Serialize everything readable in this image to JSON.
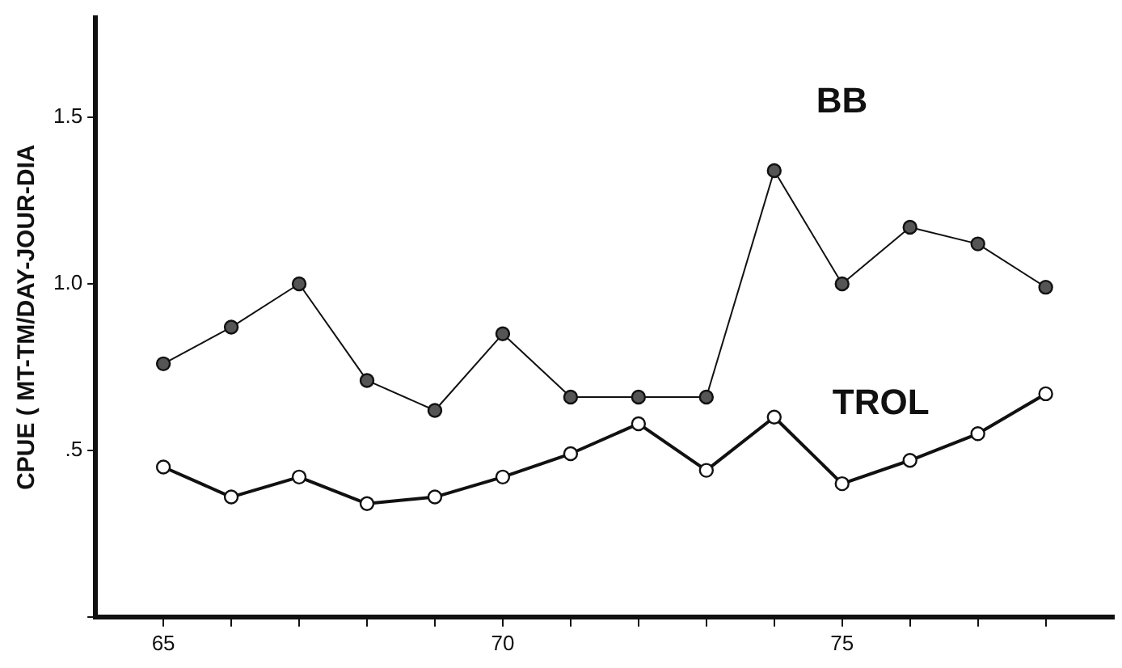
{
  "chart_data": {
    "type": "line",
    "ylabel": "CPUE ( MT-TM/DAY-JOUR-DIA",
    "x": [
      65,
      66,
      67,
      68,
      69,
      70,
      71,
      72,
      73,
      74,
      75,
      76,
      77,
      78
    ],
    "series": [
      {
        "name": "BB",
        "color": "#555555",
        "values": [
          0.76,
          0.87,
          1.0,
          0.71,
          0.62,
          0.85,
          0.66,
          0.66,
          0.66,
          1.34,
          1.0,
          1.17,
          1.12,
          0.99
        ]
      },
      {
        "name": "TROL",
        "color": "#ffffff",
        "values": [
          0.45,
          0.36,
          0.42,
          0.34,
          0.36,
          0.42,
          0.49,
          0.58,
          0.44,
          0.6,
          0.4,
          0.47,
          0.55,
          0.67
        ]
      }
    ],
    "xlim": [
      64,
      79
    ],
    "xticks": [
      65,
      {
        "value": 66,
        "label": null
      },
      {
        "value": 67,
        "label": null
      },
      {
        "value": 68,
        "label": null
      },
      {
        "value": 69,
        "label": null
      },
      70,
      {
        "value": 71,
        "label": null
      },
      {
        "value": 72,
        "label": null
      },
      {
        "value": 73,
        "label": null
      },
      {
        "value": 74,
        "label": null
      },
      75,
      {
        "value": 76,
        "label": null
      },
      {
        "value": 77,
        "label": null
      },
      {
        "value": 78,
        "label": null
      }
    ],
    "ylim": [
      0,
      1.8
    ],
    "yticks": [
      {
        "value": 0,
        "label": null
      },
      {
        "value": 0.5,
        "label": ".5"
      },
      {
        "value": 1.0,
        "label": "1.0"
      },
      {
        "value": 1.5,
        "label": "1.5"
      }
    ],
    "grid": false,
    "legend": false,
    "marker": "circle",
    "line_style": "solid"
  }
}
